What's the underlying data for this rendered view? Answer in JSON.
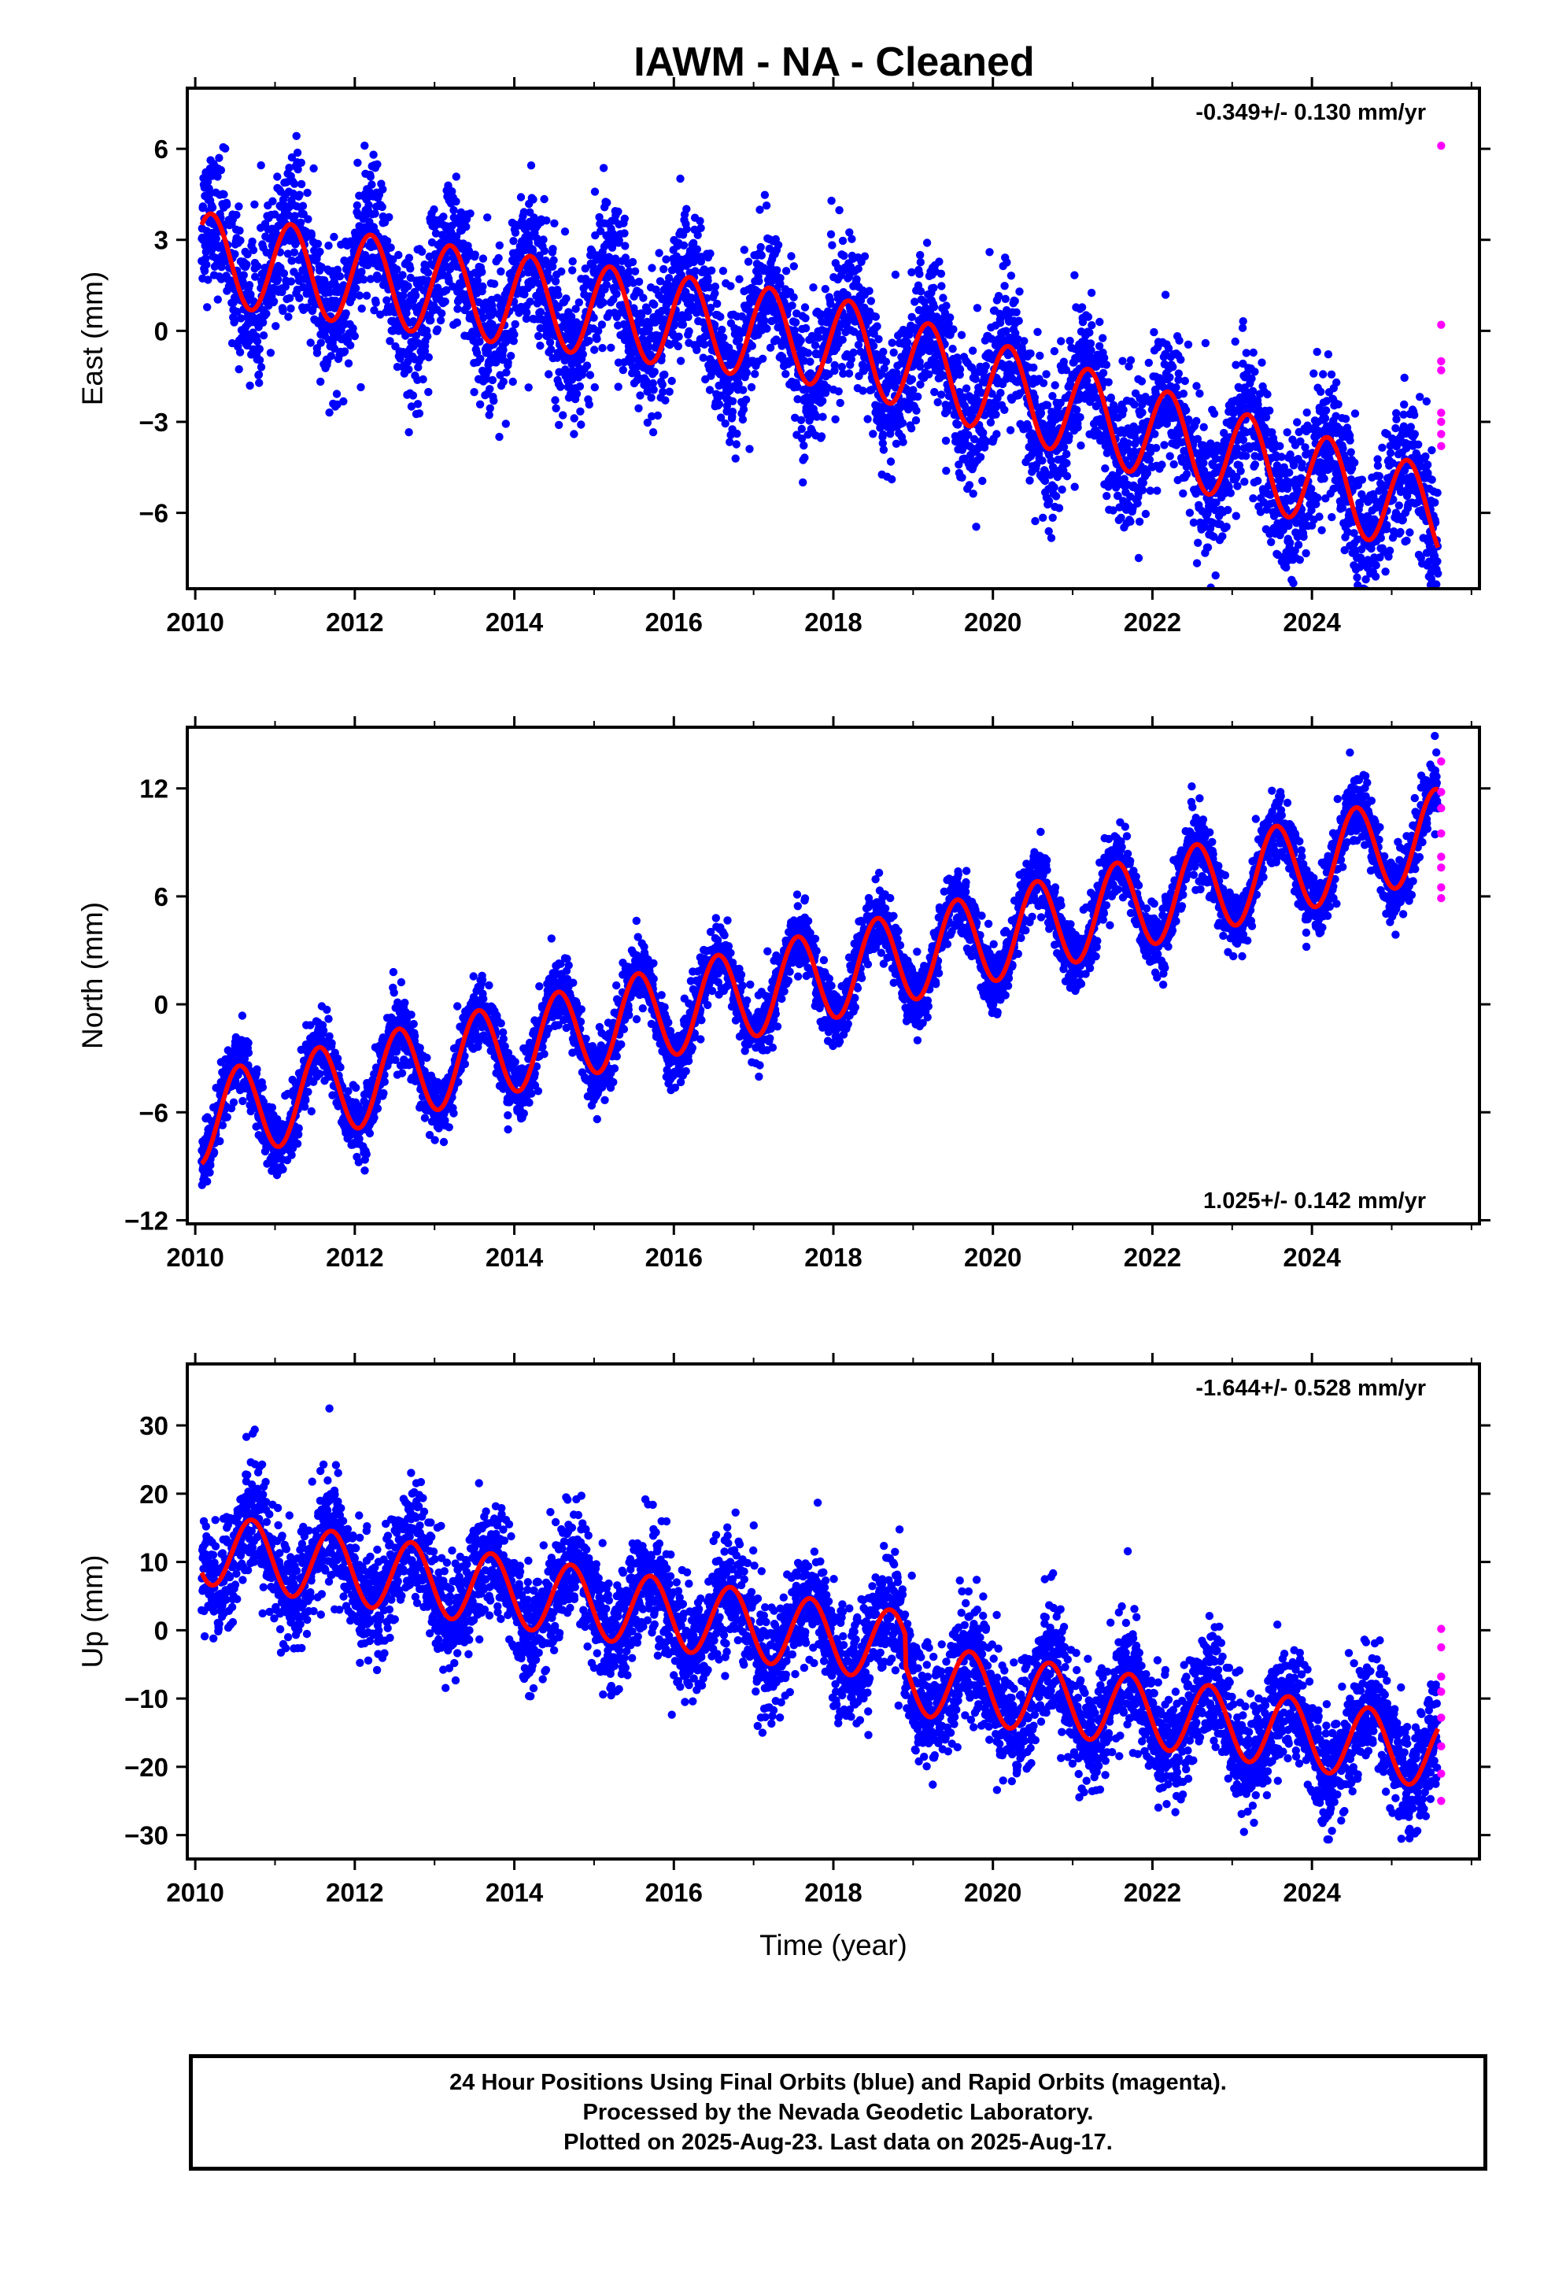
{
  "title": "IAWM  - NA - Cleaned",
  "colors": {
    "final": "#0000ff",
    "rapid": "#ff00ff",
    "model": "#ff0000"
  },
  "chart_data": [
    {
      "type": "scatter",
      "component": "east",
      "ylabel": "East (mm)",
      "rate_label": "-0.349+/- 0.130 mm/yr",
      "rate_position": "top-right",
      "xlim": [
        2009.9,
        2026.1
      ],
      "ylim": [
        -8.5,
        8.0
      ],
      "xticks": [
        2010,
        2012,
        2014,
        2016,
        2018,
        2020,
        2022,
        2024
      ],
      "xtick_labels": [
        "2010",
        "2012",
        "2014",
        "2016",
        "2018",
        "2020",
        "2022",
        "2024"
      ],
      "yticks": [
        -6,
        -3,
        0,
        3,
        6
      ],
      "ytick_labels": [
        "−6",
        "−3",
        "0",
        "3",
        "6"
      ],
      "series": [
        {
          "kind": "final_orbits",
          "color": "#0000ff",
          "x_start": 2010.08,
          "x_end": 2025.58,
          "base": 2.4,
          "rate": -0.349,
          "slope_change_year": 2018.0,
          "rate_after": -0.75,
          "annual_amp": 1.5,
          "annual_phase": 0.2,
          "noise_sd": 1.15
        },
        {
          "kind": "rapid_orbits",
          "color": "#ff00ff",
          "x": 2025.62,
          "values": [
            6.1,
            0.2,
            -1.0,
            -1.3,
            -2.7,
            -3.0,
            -3.4,
            -3.8
          ]
        },
        {
          "kind": "model_fit",
          "color": "#ff0000",
          "x_start": 2010.08,
          "x_end": 2025.58
        }
      ]
    },
    {
      "type": "scatter",
      "component": "north",
      "ylabel": "North (mm)",
      "rate_label": "1.025+/- 0.142 mm/yr",
      "rate_position": "bottom-right",
      "xlim": [
        2009.9,
        2026.1
      ],
      "ylim": [
        -12.2,
        15.4
      ],
      "xticks": [
        2010,
        2012,
        2014,
        2016,
        2018,
        2020,
        2022,
        2024
      ],
      "xtick_labels": [
        "2010",
        "2012",
        "2014",
        "2016",
        "2018",
        "2020",
        "2022",
        "2024"
      ],
      "yticks": [
        -12,
        -6,
        0,
        6,
        12
      ],
      "ytick_labels": [
        "−12",
        "−6",
        "0",
        "6",
        "12"
      ],
      "series": [
        {
          "kind": "final_orbits",
          "color": "#0000ff",
          "x_start": 2010.08,
          "x_end": 2025.58,
          "base": -6.4,
          "rate": 1.025,
          "annual_amp": 2.5,
          "annual_phase": 0.55,
          "noise_sd": 0.9
        },
        {
          "kind": "rapid_orbits",
          "color": "#ff00ff",
          "x": 2025.62,
          "values": [
            13.5,
            11.8,
            10.9,
            9.5,
            8.2,
            7.6,
            6.5,
            5.9
          ]
        },
        {
          "kind": "model_fit",
          "color": "#ff0000",
          "x_start": 2010.08,
          "x_end": 2025.58
        }
      ]
    },
    {
      "type": "scatter",
      "component": "up",
      "ylabel": "Up (mm)",
      "xlabel": "Time (year)",
      "rate_label": "-1.644+/- 0.528 mm/yr",
      "rate_position": "top-right",
      "xlim": [
        2009.9,
        2026.1
      ],
      "ylim": [
        -33.5,
        39.0
      ],
      "xticks": [
        2010,
        2012,
        2014,
        2016,
        2018,
        2020,
        2022,
        2024
      ],
      "xtick_labels": [
        "2010",
        "2012",
        "2014",
        "2016",
        "2018",
        "2020",
        "2022",
        "2024"
      ],
      "yticks": [
        -30,
        -20,
        -10,
        0,
        10,
        20,
        30
      ],
      "ytick_labels": [
        "−30",
        "−20",
        "−10",
        "0",
        "10",
        "20",
        "30"
      ],
      "series": [
        {
          "kind": "final_orbits",
          "color": "#0000ff",
          "x_start": 2010.08,
          "x_end": 2025.58,
          "base": 12.0,
          "rate": -1.644,
          "step_year": 2018.9,
          "step": -4.5,
          "annual_amp": 5.2,
          "annual_phase": 0.71,
          "noise_sd": 4.2
        },
        {
          "kind": "rapid_orbits",
          "color": "#ff00ff",
          "x": 2025.62,
          "values": [
            0.2,
            -2.5,
            -6.8,
            -9.0,
            -12.8,
            -17.0,
            -21.0,
            -25.0
          ]
        },
        {
          "kind": "model_fit",
          "color": "#ff0000",
          "x_start": 2010.08,
          "x_end": 2025.58
        }
      ]
    }
  ],
  "footer": {
    "line1": "24 Hour Positions Using Final Orbits (blue) and Rapid Orbits (magenta).",
    "line2": "Processed by the Nevada Geodetic Laboratory.",
    "line3": "Plotted on 2025-Aug-23. Last data on 2025-Aug-17."
  }
}
